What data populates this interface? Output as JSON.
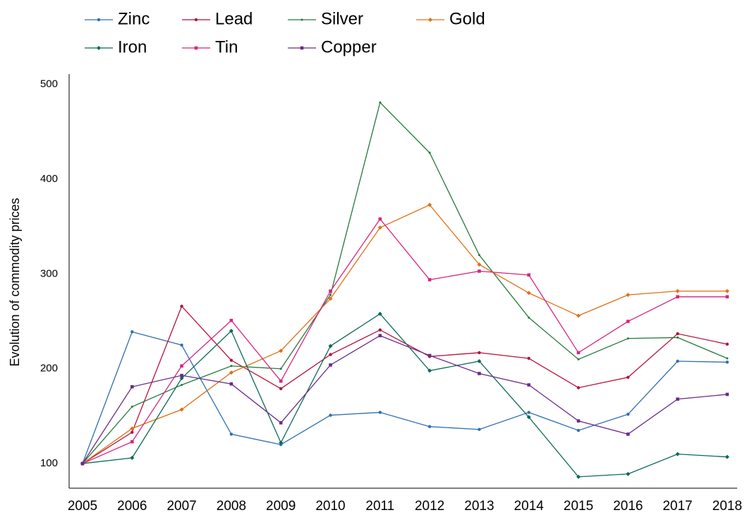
{
  "chart_data": {
    "type": "line",
    "y_label": "Evolution of commodity prices",
    "x": [
      2005,
      2006,
      2007,
      2008,
      2009,
      2010,
      2011,
      2012,
      2013,
      2014,
      2015,
      2016,
      2017,
      2018
    ],
    "xlim": [
      2004.73,
      2018.2
    ],
    "xticks": [
      2005,
      2006,
      2007,
      2008,
      2009,
      2010,
      2011,
      2012,
      2013,
      2014,
      2015,
      2016,
      2017,
      2018
    ],
    "ylim": [
      74,
      511
    ],
    "yticks": [
      100,
      200,
      300,
      400,
      500
    ],
    "series": [
      {
        "name": "Zinc",
        "color": "#2e6fb0",
        "marker": "circle",
        "values": [
          100,
          239,
          225,
          131,
          120,
          151,
          154,
          139,
          136,
          154,
          135,
          152,
          208,
          207
        ]
      },
      {
        "name": "Lead",
        "color": "#b5123c",
        "marker": "circle",
        "values": [
          100,
          133,
          266,
          209,
          179,
          215,
          241,
          213,
          217,
          211,
          180,
          191,
          237,
          226
        ]
      },
      {
        "name": "Silver",
        "color": "#237a3c",
        "marker": "dot",
        "values": [
          100,
          160,
          183,
          203,
          200,
          278,
          481,
          428,
          320,
          254,
          210,
          232,
          233,
          211
        ]
      },
      {
        "name": "Gold",
        "color": "#e07016",
        "marker": "diamond",
        "values": [
          100,
          137,
          157,
          196,
          219,
          274,
          349,
          373,
          310,
          280,
          256,
          278,
          282,
          282
        ]
      },
      {
        "name": "Iron",
        "color": "#0b6a58",
        "marker": "diamond",
        "values": [
          100,
          106,
          190,
          240,
          122,
          224,
          258,
          198,
          208,
          149,
          86,
          89,
          110,
          107
        ]
      },
      {
        "name": "Tin",
        "color": "#d6267f",
        "marker": "square",
        "values": [
          100,
          123,
          203,
          251,
          187,
          282,
          358,
          294,
          303,
          299,
          217,
          250,
          276,
          276
        ]
      },
      {
        "name": "Copper",
        "color": "#6a2a8a",
        "marker": "square",
        "values": [
          100,
          181,
          193,
          184,
          143,
          204,
          235,
          214,
          195,
          183,
          145,
          131,
          168,
          173
        ]
      }
    ]
  }
}
